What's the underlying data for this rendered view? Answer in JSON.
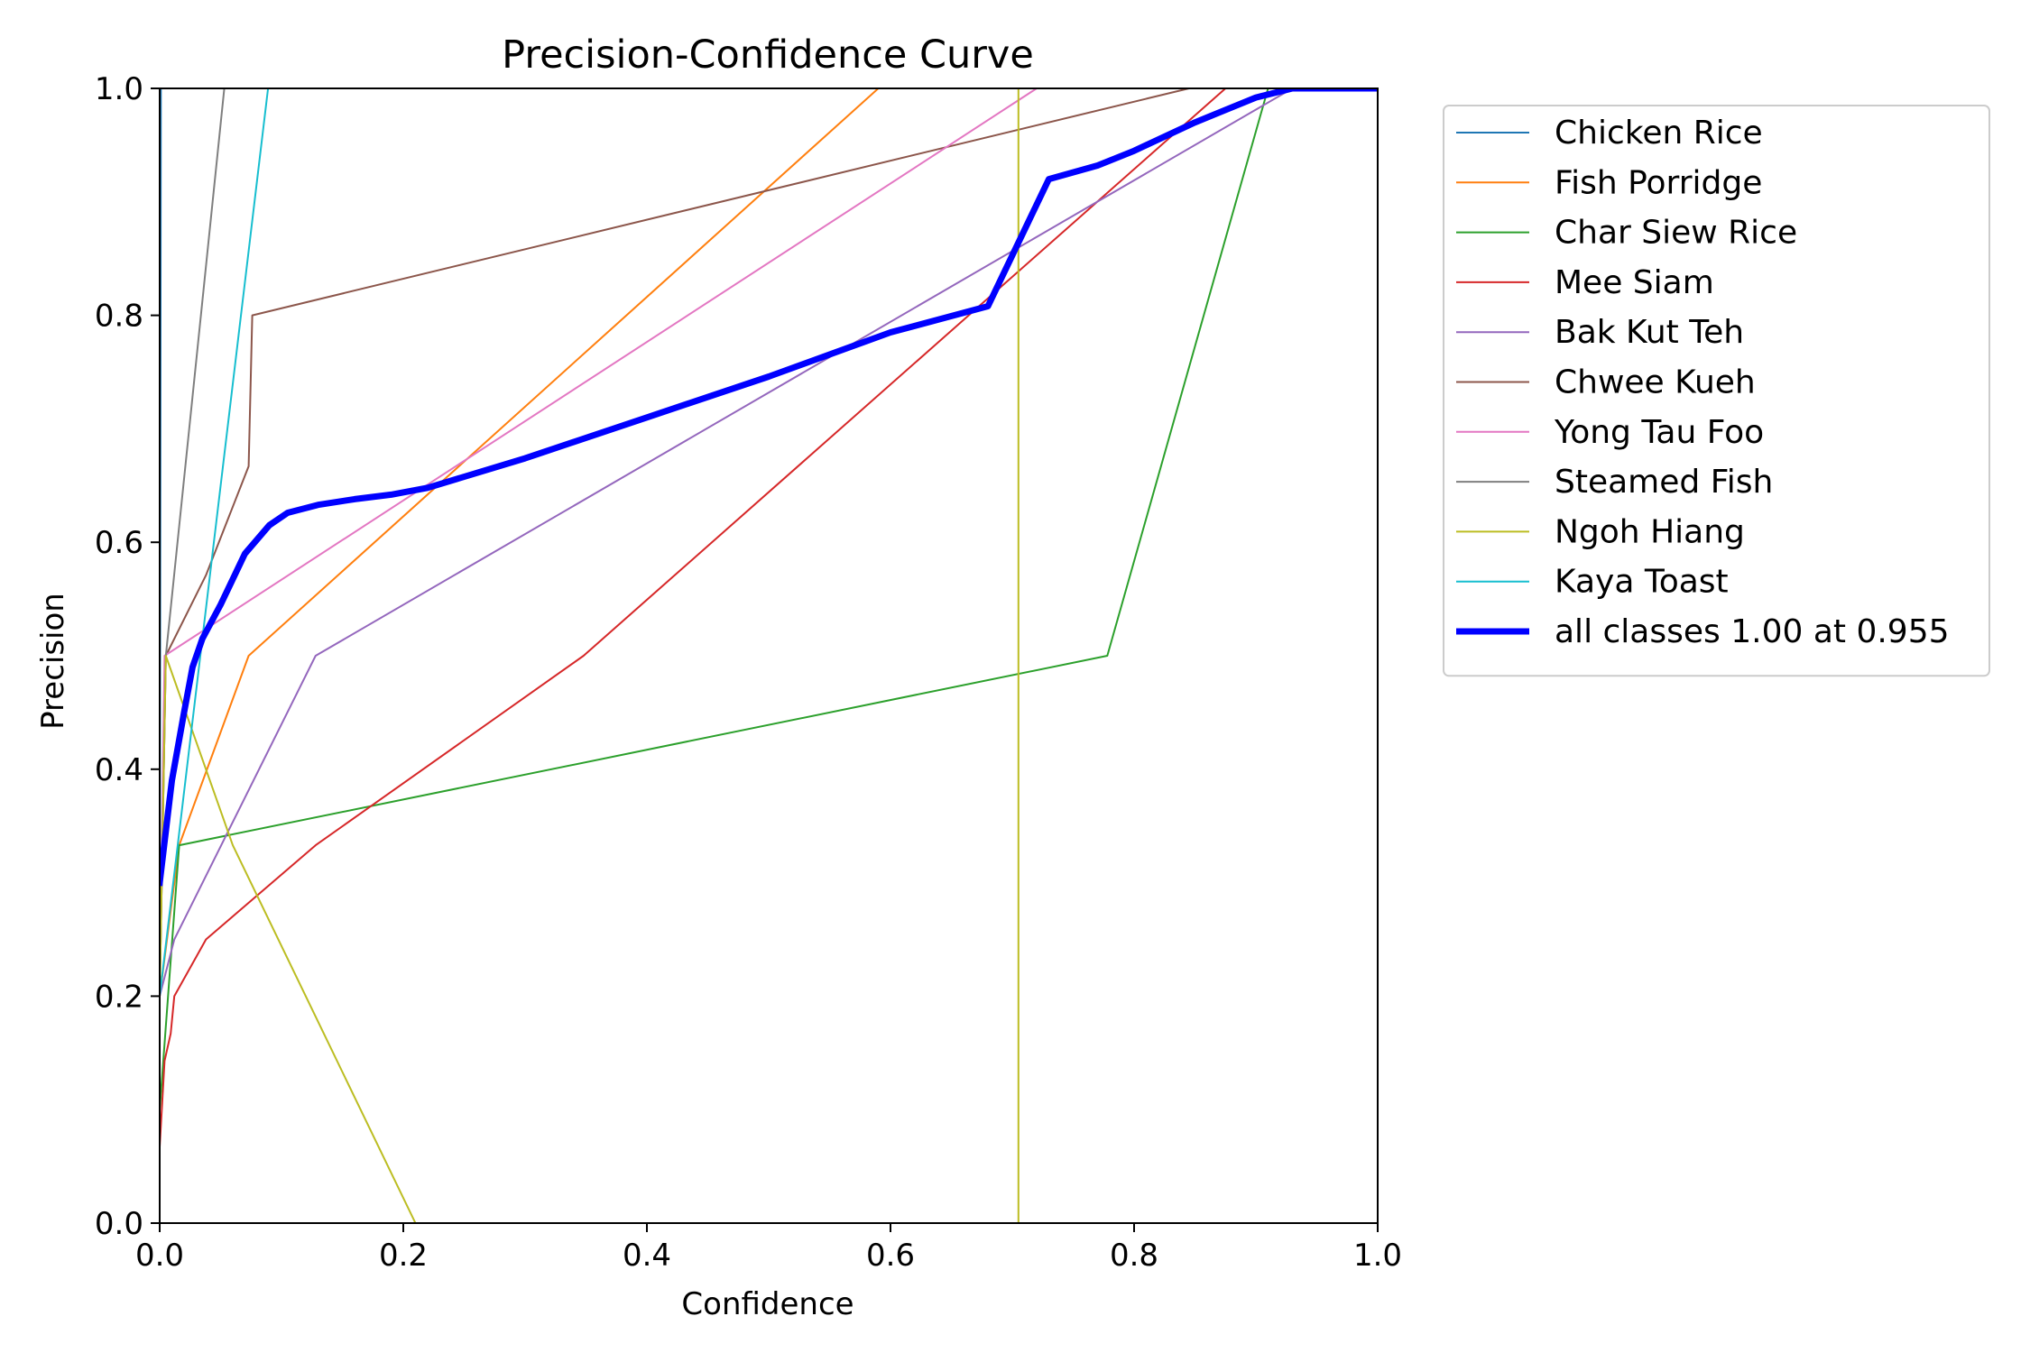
{
  "chart_data": {
    "type": "line",
    "title": "Precision-Confidence Curve",
    "xlabel": "Confidence",
    "ylabel": "Precision",
    "xlim": [
      0,
      1
    ],
    "ylim": [
      0,
      1
    ],
    "xticks": [
      "0.0",
      "0.2",
      "0.4",
      "0.6",
      "0.8",
      "1.0"
    ],
    "yticks": [
      "0.0",
      "0.2",
      "0.4",
      "0.6",
      "0.8",
      "1.0"
    ],
    "grid": false,
    "legend_position": "outside-right-top",
    "series": [
      {
        "name": "Chicken Rice",
        "color": "#1f77b4",
        "width": 2,
        "points": [
          [
            0.0,
            0.2
          ],
          [
            0.001,
            1.0
          ],
          [
            1.0,
            1.0
          ]
        ]
      },
      {
        "name": "Fish Porridge",
        "color": "#ff7f0e",
        "width": 2,
        "points": [
          [
            0.0,
            0.2
          ],
          [
            0.016,
            0.333
          ],
          [
            0.073,
            0.5
          ],
          [
            0.59,
            1.0
          ],
          [
            1.0,
            1.0
          ]
        ]
      },
      {
        "name": "Char Siew Rice",
        "color": "#2ca02c",
        "width": 2,
        "points": [
          [
            0.0,
            0.1
          ],
          [
            0.016,
            0.333
          ],
          [
            0.778,
            0.5
          ],
          [
            0.91,
            1.0
          ],
          [
            1.0,
            1.0
          ]
        ]
      },
      {
        "name": "Mee Siam",
        "color": "#d62728",
        "width": 2,
        "points": [
          [
            0.0,
            0.067
          ],
          [
            0.004,
            0.143
          ],
          [
            0.009,
            0.167
          ],
          [
            0.012,
            0.2
          ],
          [
            0.038,
            0.25
          ],
          [
            0.128,
            0.333
          ],
          [
            0.348,
            0.5
          ],
          [
            0.875,
            1.0
          ],
          [
            1.0,
            1.0
          ]
        ]
      },
      {
        "name": "Bak Kut Teh",
        "color": "#9467bd",
        "width": 2,
        "points": [
          [
            0.0,
            0.2
          ],
          [
            0.012,
            0.25
          ],
          [
            0.128,
            0.5
          ],
          [
            0.93,
            1.0
          ],
          [
            1.0,
            1.0
          ]
        ]
      },
      {
        "name": "Chwee Kueh",
        "color": "#8c564b",
        "width": 2,
        "points": [
          [
            0.0,
            0.2
          ],
          [
            0.005,
            0.5
          ],
          [
            0.038,
            0.571
          ],
          [
            0.073,
            0.667
          ],
          [
            0.076,
            0.8
          ],
          [
            0.845,
            1.0
          ],
          [
            1.0,
            1.0
          ]
        ]
      },
      {
        "name": "Yong Tau Foo",
        "color": "#e377c2",
        "width": 2,
        "points": [
          [
            0.0,
            0.2
          ],
          [
            0.004,
            0.5
          ],
          [
            0.72,
            1.0
          ],
          [
            1.0,
            1.0
          ]
        ]
      },
      {
        "name": "Steamed Fish",
        "color": "#7f7f7f",
        "width": 2,
        "points": [
          [
            0.0,
            0.2
          ],
          [
            0.005,
            0.5
          ],
          [
            0.053,
            1.0
          ],
          [
            1.0,
            1.0
          ]
        ]
      },
      {
        "name": "Ngoh Hiang",
        "color": "#bcbd22",
        "width": 2,
        "points": [
          [
            0.0,
            0.2
          ],
          [
            0.005,
            0.5
          ],
          [
            0.06,
            0.333
          ],
          [
            0.21,
            0.0
          ],
          [
            0.705,
            0.0
          ],
          [
            0.705,
            1.0
          ],
          [
            1.0,
            1.0
          ]
        ]
      },
      {
        "name": "Kaya Toast",
        "color": "#17becf",
        "width": 2,
        "points": [
          [
            0.0,
            0.2
          ],
          [
            0.089,
            1.0
          ],
          [
            1.0,
            1.0
          ]
        ]
      },
      {
        "name": "all classes 1.00 at 0.955",
        "color": "#0000ff",
        "width": 7,
        "points": [
          [
            0.0,
            0.3
          ],
          [
            0.01,
            0.39
          ],
          [
            0.02,
            0.45
          ],
          [
            0.027,
            0.49
          ],
          [
            0.035,
            0.515
          ],
          [
            0.05,
            0.545
          ],
          [
            0.07,
            0.59
          ],
          [
            0.09,
            0.615
          ],
          [
            0.105,
            0.626
          ],
          [
            0.13,
            0.633
          ],
          [
            0.16,
            0.638
          ],
          [
            0.19,
            0.642
          ],
          [
            0.22,
            0.648
          ],
          [
            0.3,
            0.674
          ],
          [
            0.4,
            0.71
          ],
          [
            0.5,
            0.746
          ],
          [
            0.6,
            0.785
          ],
          [
            0.68,
            0.808
          ],
          [
            0.73,
            0.92
          ],
          [
            0.77,
            0.932
          ],
          [
            0.8,
            0.945
          ],
          [
            0.85,
            0.97
          ],
          [
            0.9,
            0.992
          ],
          [
            0.93,
            1.0
          ],
          [
            0.955,
            1.0
          ],
          [
            1.0,
            1.0
          ]
        ]
      }
    ]
  }
}
